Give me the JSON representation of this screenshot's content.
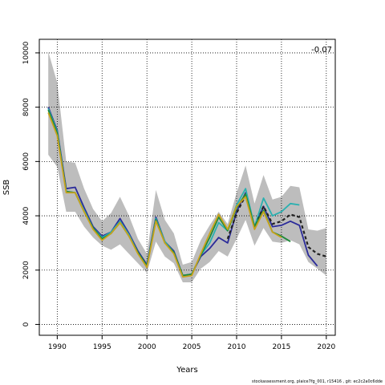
{
  "chart_data": {
    "type": "line",
    "title": "",
    "xlabel": "Years",
    "ylabel": "SSB",
    "xlim": [
      1988,
      2021
    ],
    "ylim": [
      -400,
      10500
    ],
    "xticks": [
      1990,
      1995,
      2000,
      2005,
      2010,
      2015,
      2020
    ],
    "yticks": [
      0,
      2000,
      4000,
      6000,
      8000,
      10000
    ],
    "grid": true,
    "annotation": "-0.07",
    "confidence_band": {
      "x": [
        1989,
        1990,
        1991,
        1992,
        1993,
        1994,
        1995,
        1996,
        1997,
        1998,
        1999,
        2000,
        2001,
        2002,
        2003,
        2004,
        2005,
        2006,
        2007,
        2008,
        2009,
        2010,
        2011,
        2012,
        2013,
        2014,
        2015,
        2016,
        2017,
        2018,
        2019,
        2020
      ],
      "upper": [
        10050,
        8900,
        6000,
        5950,
        5000,
        4250,
        3800,
        4100,
        4700,
        4000,
        3150,
        2600,
        4950,
        3850,
        3350,
        2200,
        2300,
        3100,
        3650,
        4150,
        3700,
        4850,
        5850,
        4450,
        5500,
        4600,
        4700,
        5100,
        5050,
        3500,
        3450,
        3550
      ],
      "lower": [
        6250,
        5800,
        4150,
        4150,
        3600,
        3200,
        2900,
        2750,
        2950,
        2600,
        2250,
        1900,
        3050,
        2500,
        2250,
        1550,
        1550,
        2050,
        2300,
        2700,
        2500,
        3150,
        3850,
        2900,
        3550,
        3050,
        3000,
        3100,
        2950,
        2300,
        2050,
        1800
      ]
    },
    "series": [
      {
        "color": "#2b2b9a",
        "dashed": false,
        "x": [
          1989,
          1990,
          1991,
          1992,
          1993,
          1994,
          1995,
          1996,
          1997,
          1998,
          1999,
          2000,
          2001,
          2002,
          2003,
          2004,
          2005,
          2006,
          2007,
          2008,
          2009,
          2010,
          2011,
          2012,
          2013,
          2014,
          2015,
          2016,
          2017,
          2018,
          2019
        ],
        "y": [
          8000,
          7150,
          5000,
          5050,
          4300,
          3600,
          3250,
          3400,
          3900,
          3350,
          2700,
          2200,
          3950,
          3050,
          2700,
          1800,
          1850,
          2500,
          2800,
          3200,
          3000,
          4150,
          4850,
          3550,
          4350,
          3600,
          3650,
          3800,
          3650,
          2550,
          2150
        ]
      },
      {
        "color": "#2ab0b0",
        "dashed": false,
        "x": [
          1989,
          1990,
          1991,
          1992,
          1993,
          1994,
          1995,
          1996,
          1997,
          1998,
          1999,
          2000,
          2001,
          2002,
          2003,
          2004,
          2005,
          2006,
          2007,
          2008,
          2009,
          2010,
          2011,
          2012,
          2013,
          2014,
          2015,
          2016,
          2017
        ],
        "y": [
          7950,
          7100,
          4900,
          4850,
          4200,
          3550,
          3200,
          3400,
          3800,
          3300,
          2650,
          2150,
          3900,
          3050,
          2650,
          1800,
          1850,
          2550,
          3000,
          3750,
          3450,
          4400,
          5000,
          3600,
          4650,
          4000,
          4150,
          4450,
          4400
        ]
      },
      {
        "color": "#222222",
        "dashed": true,
        "x": [
          2009,
          2010,
          2011,
          2012,
          2013,
          2014,
          2015,
          2016,
          2017,
          2018,
          2019,
          2020
        ],
        "y": [
          3150,
          4100,
          4750,
          3550,
          4350,
          3700,
          3800,
          4050,
          3950,
          2850,
          2600,
          2500
        ]
      },
      {
        "color": "#1f8a3a",
        "dashed": false,
        "x": [
          1989,
          1990,
          1991,
          1992,
          1993,
          1994,
          1995,
          1996,
          1997,
          1998,
          1999,
          2000,
          2001,
          2002,
          2003,
          2004,
          2005,
          2006,
          2007,
          2008,
          2009,
          2010,
          2011,
          2012,
          2013,
          2014,
          2015,
          2016
        ],
        "y": [
          7900,
          7050,
          4900,
          4850,
          4150,
          3550,
          3150,
          3350,
          3750,
          3250,
          2650,
          2150,
          3850,
          3000,
          2650,
          1800,
          1850,
          2550,
          3200,
          3950,
          3450,
          4300,
          4800,
          3600,
          4200,
          3400,
          3250,
          3050
        ]
      },
      {
        "color": "#c9a21c",
        "dashed": false,
        "x": [
          1989,
          1990,
          1991,
          1992,
          1993,
          1994,
          1995,
          1996,
          1997,
          1998,
          1999,
          2000,
          2001,
          2002,
          2003,
          2004,
          2005,
          2006,
          2007,
          2008,
          2009,
          2010,
          2011,
          2012,
          2013,
          2014,
          2015
        ],
        "y": [
          7800,
          6950,
          4850,
          4850,
          4150,
          3500,
          3100,
          3350,
          3750,
          3250,
          2600,
          2100,
          3800,
          3000,
          2600,
          1750,
          1800,
          2600,
          3350,
          4050,
          3500,
          4350,
          4700,
          3500,
          4150,
          3400,
          3200
        ]
      }
    ]
  },
  "footer": "stockassessment.org, plaice7fg_001, r15416 ,  git: ec2c2a0c6dde"
}
